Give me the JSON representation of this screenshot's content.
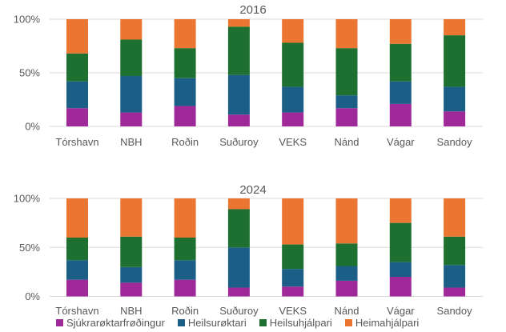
{
  "chart_data": [
    {
      "type": "bar",
      "stacked": true,
      "normalized": true,
      "title": "2016",
      "categories": [
        "Tórshavn",
        "NBH",
        "Roðin",
        "Suðuroy",
        "VEKS",
        "Nánd",
        "Vágar",
        "Sandoy"
      ],
      "yticks": [
        "0%",
        "50%",
        "100%"
      ],
      "ylim": [
        0,
        100
      ],
      "grid": true,
      "series": [
        {
          "name": "Sjúkrarøktarfrøðingur",
          "color": "#a0299a",
          "values": [
            17,
            13,
            19,
            11,
            13,
            17,
            21,
            14
          ]
        },
        {
          "name": "Heilsurøktari",
          "color": "#1b5f86",
          "values": [
            25,
            34,
            26,
            37,
            24,
            12,
            21,
            23
          ]
        },
        {
          "name": "Heilsuhjálpari",
          "color": "#1e7031",
          "values": [
            26,
            34,
            28,
            45,
            41,
            44,
            35,
            48
          ]
        },
        {
          "name": "Heimahjálpari",
          "color": "#ea7632",
          "values": [
            32,
            19,
            27,
            7,
            22,
            27,
            23,
            15
          ]
        }
      ]
    },
    {
      "type": "bar",
      "stacked": true,
      "normalized": true,
      "title": "2024",
      "categories": [
        "Tórshavn",
        "NBH",
        "Roðin",
        "Suðuroy",
        "VEKS",
        "Nánd",
        "Vágar",
        "Sandoy"
      ],
      "yticks": [
        "0%",
        "50%",
        "100%"
      ],
      "ylim": [
        0,
        100
      ],
      "grid": true,
      "series": [
        {
          "name": "Sjúkrarøktarfrøðingur",
          "color": "#a0299a",
          "values": [
            17,
            14,
            17,
            9,
            10,
            16,
            20,
            9
          ]
        },
        {
          "name": "Heilsurøktari",
          "color": "#1b5f86",
          "values": [
            20,
            16,
            20,
            41,
            18,
            15,
            15,
            23
          ]
        },
        {
          "name": "Heilsuhjálpari",
          "color": "#1e7031",
          "values": [
            23,
            31,
            23,
            39,
            25,
            23,
            40,
            29
          ]
        },
        {
          "name": "Heimahjálpari",
          "color": "#ea7632",
          "values": [
            40,
            39,
            40,
            11,
            47,
            46,
            25,
            39
          ]
        }
      ]
    }
  ],
  "legend": [
    {
      "label": "Sjúkrarøktarfrøðingur",
      "color": "#a0299a"
    },
    {
      "label": "Heilsurøktari",
      "color": "#1b5f86"
    },
    {
      "label": "Heilsuhjálpari",
      "color": "#1e7031"
    },
    {
      "label": "Heimahjálpari",
      "color": "#ea7632"
    }
  ]
}
